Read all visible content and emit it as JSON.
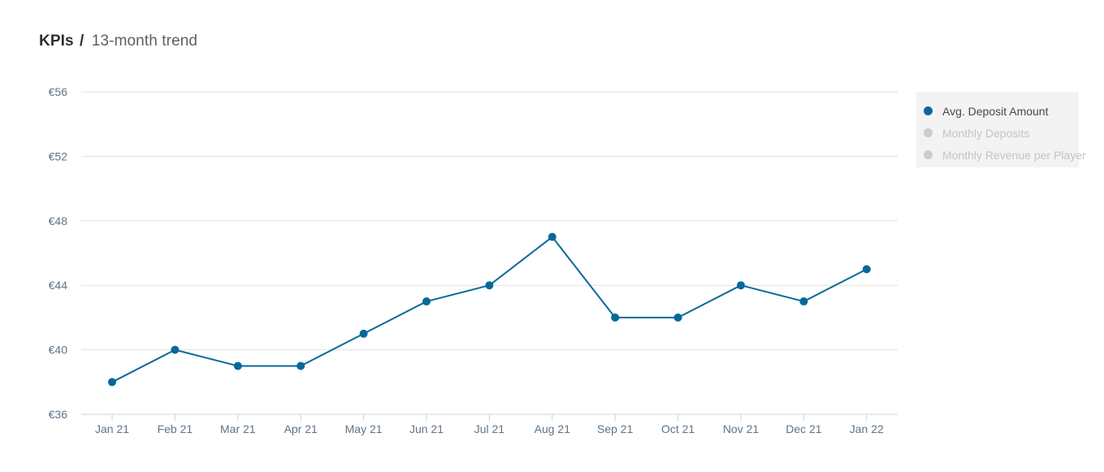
{
  "header": {
    "title_bold": "KPIs",
    "title_separator": "/",
    "title_rest": "13-month trend"
  },
  "legend": {
    "placement": "right",
    "items": [
      {
        "label": "Avg. Deposit Amount",
        "color": "#06699a",
        "active": true
      },
      {
        "label": "Monthly Deposits",
        "color": "#cccccc",
        "active": false
      },
      {
        "label": "Monthly Revenue per Player",
        "color": "#cccccc",
        "active": false
      }
    ]
  },
  "chart_data": {
    "type": "line",
    "categories": [
      "Jan 21",
      "Feb 21",
      "Mar 21",
      "Apr 21",
      "May 21",
      "Jun 21",
      "Jul 21",
      "Aug 21",
      "Sep 21",
      "Oct 21",
      "Nov 21",
      "Dec 21",
      "Jan 22"
    ],
    "series": [
      {
        "name": "Avg. Deposit Amount",
        "color": "#06699a",
        "visible": true,
        "values": [
          38,
          40,
          39,
          39,
          41,
          43,
          44,
          47,
          42,
          42,
          44,
          43,
          45
        ]
      }
    ],
    "hidden_series": [
      "Monthly Deposits",
      "Monthly Revenue per Player"
    ],
    "ylim": [
      36,
      56
    ],
    "y_ticks": [
      36,
      40,
      44,
      48,
      52,
      56
    ],
    "y_tick_labels": [
      "€36",
      "€40",
      "€44",
      "€48",
      "€52",
      "€56"
    ],
    "grid": true,
    "gridline_color": "#e1e1e1",
    "axis_line_color": "#c6d3e0",
    "tick_label_color": "#5f7488"
  }
}
